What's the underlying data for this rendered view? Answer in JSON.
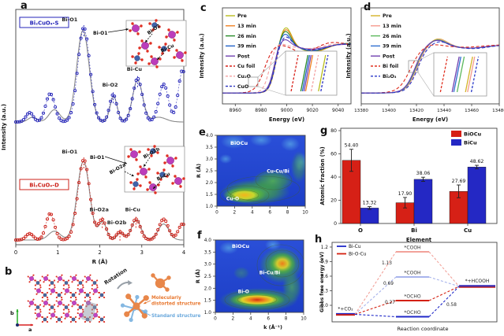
{
  "panel_labels": {
    "a": "a",
    "b": "b",
    "c": "c",
    "d": "d",
    "e": "e",
    "f": "f",
    "g": "g",
    "h": "h"
  },
  "panel_b": {
    "rotation_label": "Rotation",
    "distorted_label_line1": "Molecularly",
    "distorted_label_line2": "distorted structure",
    "standard_label": "Standard structure",
    "axis_up": "b",
    "axis_right": "a",
    "distorted_color": "#e87830",
    "standard_color": "#6aa8dc"
  },
  "chart_data": [
    {
      "id": "a",
      "type": "line",
      "panel": "a",
      "xlabel": "R (Å)",
      "ylabel": "Intensity (a.u.)",
      "xlim": [
        0,
        4
      ],
      "xticks": [
        "0",
        "1",
        "2",
        "3",
        "4"
      ],
      "spectra": [
        {
          "sample": "Bi₂CuO₄-S",
          "color": "#2424b8",
          "fit_color": "#8a8a8a",
          "peaks_R_height_width": [
            [
              0.33,
              0.1,
              0.12
            ],
            [
              0.82,
              0.3,
              0.15
            ],
            [
              1.62,
              1.0,
              0.2
            ],
            [
              2.32,
              0.29,
              0.12
            ],
            [
              2.9,
              0.46,
              0.16
            ],
            [
              3.52,
              0.4,
              0.16
            ],
            [
              3.97,
              0.55,
              0.14
            ]
          ],
          "fit_peaks": [
            [
              0.4,
              0.05,
              0.15
            ],
            [
              0.92,
              0.13,
              0.18
            ],
            [
              1.6,
              0.97,
              0.21
            ],
            [
              2.33,
              0.27,
              0.12
            ],
            [
              2.9,
              0.44,
              0.17
            ],
            [
              3.4,
              0.05,
              0.25
            ]
          ],
          "assignments": [
            {
              "label": "Bi-O1",
              "R_A": 1.62
            },
            {
              "label": "Bi-O2",
              "R_A": 2.32
            },
            {
              "label": "Bi-Cu",
              "R_A": 2.9
            }
          ],
          "inset_bond_labels": [
            "Bi-O1",
            "Bi-O2",
            "Bi-Cu"
          ]
        },
        {
          "sample": "Bi₂CuO₄-D",
          "color": "#cc2018",
          "fit_color": "#8a8a8a",
          "peaks_R_height_width": [
            [
              0.33,
              0.08,
              0.12
            ],
            [
              0.82,
              0.33,
              0.14
            ],
            [
              1.62,
              1.0,
              0.2
            ],
            [
              2.06,
              0.25,
              0.13
            ],
            [
              2.48,
              0.1,
              0.12
            ],
            [
              2.86,
              0.26,
              0.15
            ],
            [
              3.52,
              0.26,
              0.16
            ],
            [
              3.97,
              0.2,
              0.14
            ]
          ],
          "fit_peaks": [
            [
              0.92,
              0.11,
              0.2
            ],
            [
              1.61,
              0.98,
              0.21
            ],
            [
              2.07,
              0.22,
              0.13
            ],
            [
              2.49,
              0.09,
              0.12
            ],
            [
              2.87,
              0.25,
              0.16
            ],
            [
              3.52,
              0.2,
              0.18
            ]
          ],
          "assignments": [
            {
              "label": "Bi-O1",
              "R_A": 1.62
            },
            {
              "label": "Bi-O2a",
              "R_A": 2.06
            },
            {
              "label": "Bi-O2b",
              "R_A": 2.48
            },
            {
              "label": "Bi-Cu",
              "R_A": 2.86
            }
          ],
          "inset_bond_labels": [
            "Bi-O1",
            "Bi-O2a",
            "Bi-O2b",
            "Bi-Cu"
          ]
        }
      ]
    },
    {
      "id": "c",
      "type": "line",
      "panel": "c",
      "xlabel": "Energy (eV)",
      "ylabel": "Intensity (a.u.)",
      "xlim": [
        8950,
        9050
      ],
      "xticks": [
        8960,
        8980,
        9000,
        9020,
        9040
      ],
      "shape": {
        "rise": 2.4,
        "wl_t": 8,
        "wl_w": 6.5,
        "dip_t": 30,
        "dip_w": 13,
        "hump_t": 55,
        "hump_w": 15
      },
      "series": [
        {
          "name": "Pre",
          "color": "#b8bc1c",
          "dashed": false,
          "edge_eV": 8991.0,
          "white_line": 0.42,
          "dip": 0.13,
          "hump": 0.05,
          "inset_x": 0.78
        },
        {
          "name": "13 min",
          "color": "#f08020",
          "dashed": false,
          "edge_eV": 8991.0,
          "white_line": 0.38,
          "dip": 0.12,
          "hump": 0.05,
          "inset_x": 0.46
        },
        {
          "name": "26 min",
          "color": "#288a28",
          "dashed": false,
          "edge_eV": 8990.6,
          "white_line": 0.34,
          "dip": 0.11,
          "hump": 0.05,
          "inset_x": 0.34
        },
        {
          "name": "39 min",
          "color": "#2060c8",
          "dashed": false,
          "edge_eV": 8990.3,
          "white_line": 0.28,
          "dip": 0.1,
          "hump": 0.04,
          "inset_x": 0.38
        },
        {
          "name": "Post",
          "color": "#7040b0",
          "dashed": false,
          "edge_eV": 8989.9,
          "white_line": 0.16,
          "dip": 0.07,
          "hump": 0.03,
          "inset_x": 0.42
        },
        {
          "name": "Cu foil",
          "color": "#d82018",
          "dashed": true,
          "edge_eV": 8982.5,
          "white_line": 0.02,
          "dip": 0.1,
          "hump": 0.06,
          "rise": 3.6,
          "wiggle": 0.05,
          "inset_x": 0.1
        },
        {
          "name": "Cu₂O",
          "color": "#f4a0a0",
          "dashed": true,
          "edge_eV": 8986.5,
          "white_line": 0.06,
          "dip": 0.06,
          "hump": 0.04,
          "inset_x": 0.6
        },
        {
          "name": "CuO",
          "color": "#2830c0",
          "dashed": true,
          "edge_eV": 8990.8,
          "white_line": 0.22,
          "dip": 0.09,
          "hump": 0.04,
          "inset_x": 0.84
        }
      ]
    },
    {
      "id": "d",
      "type": "line",
      "panel": "d",
      "xlabel": "Energy (eV)",
      "ylabel": "Intensity (a.u.)",
      "xlim": [
        13380,
        13480
      ],
      "xticks": [
        13380,
        13400,
        13420,
        13440,
        13460,
        13480
      ],
      "shape": {
        "rise": 3.6,
        "wl_t": 16,
        "wl_w": 9,
        "dip_t": 40,
        "dip_w": 15,
        "hump_t": 70,
        "hump_w": 18
      },
      "series": [
        {
          "name": "Pre",
          "color": "#d4b428",
          "dashed": false,
          "edge_eV": 13419.6,
          "white_line": 0.16,
          "dip": 0.05,
          "hump": 0.02,
          "inset_x": 0.72
        },
        {
          "name": "13 min",
          "color": "#f59a8c",
          "dashed": false,
          "edge_eV": 13419.9,
          "white_line": 0.15,
          "dip": 0.05,
          "hump": 0.02,
          "inset_x": 0.77
        },
        {
          "name": "26 min",
          "color": "#5cb85c",
          "dashed": false,
          "edge_eV": 13419.2,
          "white_line": 0.14,
          "dip": 0.05,
          "hump": 0.02,
          "inset_x": 0.52
        },
        {
          "name": "39 min",
          "color": "#2f6fd0",
          "dashed": false,
          "edge_eV": 13418.8,
          "white_line": 0.13,
          "dip": 0.05,
          "hump": 0.02,
          "inset_x": 0.44
        },
        {
          "name": "Post",
          "color": "#7040b0",
          "dashed": false,
          "edge_eV": 13418.6,
          "white_line": 0.13,
          "dip": 0.05,
          "hump": 0.02,
          "inset_x": 0.4
        },
        {
          "name": "Bi foil",
          "color": "#e03020",
          "dashed": true,
          "edge_eV": 13415.5,
          "white_line": 0.04,
          "dip": 0.03,
          "hump": 0.02,
          "rise": 4.2,
          "inset_x": 0.12
        },
        {
          "name": "Bi₂O₃",
          "color": "#2838c8",
          "dashed": true,
          "edge_eV": 13420.6,
          "white_line": 0.1,
          "dip": 0.06,
          "hump": 0.02,
          "inset_x": 0.86
        }
      ]
    },
    {
      "id": "e",
      "type": "heatmap",
      "panel": "e",
      "material_label": "BiOCu",
      "ylabel": "R (Å)",
      "xlim": [
        0,
        10
      ],
      "ylim": [
        1.0,
        4.0
      ],
      "xticks": [
        "0",
        "2",
        "4",
        "6",
        "8",
        "10"
      ],
      "yticks": [
        "1.0",
        "1.5",
        "2.0",
        "2.5",
        "3.0",
        "3.5",
        "4.0"
      ],
      "features": [
        {
          "label": "Cu-O",
          "k_inv_A": 3.2,
          "R_A": 1.45,
          "strength": "strong"
        },
        {
          "label": "Cu-Cu/Bi",
          "k_inv_A": 6.0,
          "R_A": 1.95,
          "strength": "medium"
        }
      ]
    },
    {
      "id": "f",
      "type": "heatmap",
      "panel": "f",
      "material_label": "BiOCu",
      "ylabel": "R (Å)",
      "xlabel": "k (Å⁻¹)",
      "xlim": [
        0,
        10
      ],
      "ylim": [
        1.0,
        4.0
      ],
      "xticks": [
        "0",
        "2",
        "4",
        "6",
        "8",
        "10"
      ],
      "yticks": [
        "1.0",
        "1.5",
        "2.0",
        "2.5",
        "3.0",
        "3.5",
        "4.0"
      ],
      "features": [
        {
          "label": "Bi-O",
          "k_inv_A": 4.7,
          "R_A": 1.5,
          "strength": "very strong"
        },
        {
          "label": "Bi-Cu/Bi",
          "k_inv_A": 7.3,
          "R_A": 3.0,
          "strength": "strong"
        }
      ]
    },
    {
      "id": "g",
      "type": "bar",
      "panel": "g",
      "xlabel": "Element",
      "ylabel": "Atomic fraction (%)",
      "ylim": [
        0,
        80
      ],
      "yticks": [
        0,
        20,
        40,
        60,
        80
      ],
      "categories": [
        "O",
        "Bi",
        "Cu"
      ],
      "series": [
        {
          "name": "BiOCu",
          "color": "#d62016",
          "values": [
            54.4,
            17.9,
            27.69
          ],
          "errors": [
            9.5,
            4.5,
            5.5
          ],
          "value_labels": [
            "54.40",
            "17.90",
            "27.69"
          ]
        },
        {
          "name": "BiCu",
          "color": "#2428c4",
          "values": [
            13.32,
            38.06,
            48.62
          ],
          "errors": [
            1.2,
            1.8,
            1.5
          ],
          "value_labels": [
            "13.32",
            "38.06",
            "48.62"
          ]
        }
      ]
    },
    {
      "id": "h",
      "type": "energy_diagram",
      "panel": "h",
      "xlabel": "Reaction coordinate",
      "ylabel": "Gibbs free energy (eV)",
      "yticks": [
        "0.0",
        "0.3",
        "0.6",
        "0.9",
        "1.2"
      ],
      "legend": [
        {
          "name": "Bi-Cu",
          "color": "#2028c8"
        },
        {
          "name": "Bi-O-Cu",
          "color": "#d42010"
        }
      ],
      "initial_state": {
        "label": "*+CO₂",
        "energy_eV": 0.0
      },
      "final_state": {
        "label": "*+HCOOH",
        "energy_eV": 0.45
      },
      "intermediates": [
        {
          "path": "Bi-O-Cu",
          "label": "*COOH",
          "energy_eV": 1.13,
          "step_label": "1.13",
          "color": "#f2a29a"
        },
        {
          "path": "Bi-Cu",
          "label": "*COOH",
          "energy_eV": 0.69,
          "step_label": "0.69",
          "color": "#a8b4ec"
        },
        {
          "path": "Bi-O-Cu",
          "label": "*OCHO",
          "energy_eV": 0.27,
          "step_label": "0.27",
          "color": "#d42010"
        },
        {
          "path": "Bi-Cu",
          "label": "*OCHO",
          "energy_eV": -0.13,
          "step_label": "0.58",
          "color": "#2028c8"
        }
      ]
    }
  ]
}
